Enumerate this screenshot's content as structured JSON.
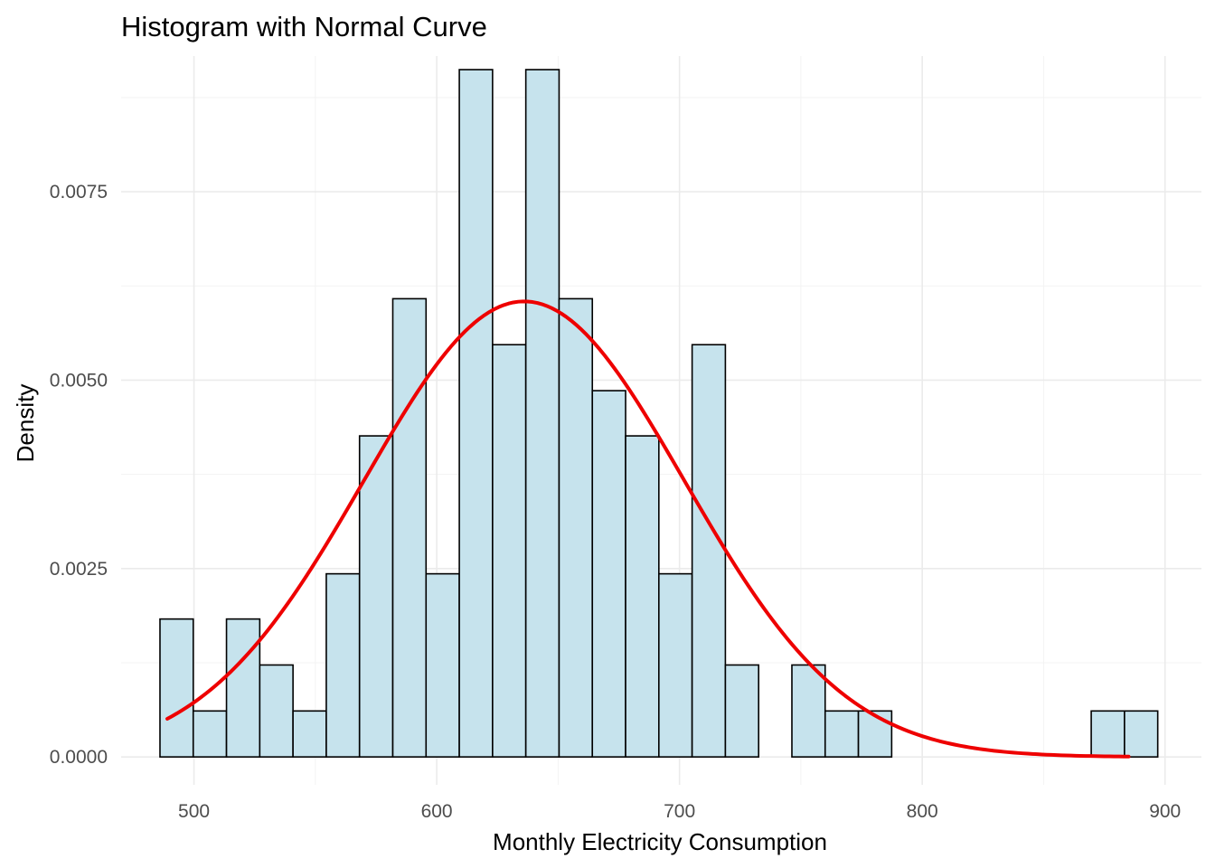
{
  "chart_data": {
    "type": "bar",
    "title": "Histogram with Normal Curve",
    "xlabel": "Monthly Electricity Consumption",
    "ylabel": "Density",
    "xlim": [
      470,
      915
    ],
    "ylim": [
      -0.00037,
      0.0093
    ],
    "x_ticks": [
      500,
      600,
      700,
      800,
      900
    ],
    "x_tick_labels": [
      "500",
      "600",
      "700",
      "800",
      "900"
    ],
    "y_ticks": [
      0,
      0.0025,
      0.005,
      0.0075
    ],
    "y_tick_labels": [
      "0.0000",
      "0.0025",
      "0.0050",
      "0.0075"
    ],
    "grid": true,
    "legend": "none",
    "colors": {
      "bar_fill": "#c6e3ed",
      "bar_outline": "#000000",
      "curve": "#ee0000",
      "grid": "#ebebeb"
    },
    "histogram": {
      "bin_width": 13.7,
      "bins": [
        {
          "start": 486.0,
          "end": 499.7,
          "density": 0.00183
        },
        {
          "start": 499.7,
          "end": 513.4,
          "density": 0.00061
        },
        {
          "start": 513.4,
          "end": 527.1,
          "density": 0.00183
        },
        {
          "start": 527.1,
          "end": 540.8,
          "density": 0.00122
        },
        {
          "start": 540.8,
          "end": 554.5,
          "density": 0.00061
        },
        {
          "start": 554.5,
          "end": 568.2,
          "density": 0.00243
        },
        {
          "start": 568.2,
          "end": 581.9,
          "density": 0.00426
        },
        {
          "start": 581.9,
          "end": 595.6,
          "density": 0.00608
        },
        {
          "start": 595.6,
          "end": 609.3,
          "density": 0.00243
        },
        {
          "start": 609.3,
          "end": 623.0,
          "density": 0.00912
        },
        {
          "start": 623.0,
          "end": 636.7,
          "density": 0.00547
        },
        {
          "start": 636.7,
          "end": 650.4,
          "density": 0.00912
        },
        {
          "start": 650.4,
          "end": 664.1,
          "density": 0.00608
        },
        {
          "start": 664.1,
          "end": 677.8,
          "density": 0.00486
        },
        {
          "start": 677.8,
          "end": 691.5,
          "density": 0.00426
        },
        {
          "start": 691.5,
          "end": 705.2,
          "density": 0.00243
        },
        {
          "start": 705.2,
          "end": 718.9,
          "density": 0.00547
        },
        {
          "start": 718.9,
          "end": 732.6,
          "density": 0.00122
        },
        {
          "start": 732.6,
          "end": 746.3,
          "density": 0.0
        },
        {
          "start": 746.3,
          "end": 760.0,
          "density": 0.00122
        },
        {
          "start": 760.0,
          "end": 773.7,
          "density": 0.00061
        },
        {
          "start": 773.7,
          "end": 787.4,
          "density": 0.00061
        },
        {
          "start": 787.4,
          "end": 801.1,
          "density": 0.0
        },
        {
          "start": 801.1,
          "end": 814.8,
          "density": 0.0
        },
        {
          "start": 814.8,
          "end": 828.5,
          "density": 0.0
        },
        {
          "start": 828.5,
          "end": 842.2,
          "density": 0.0
        },
        {
          "start": 842.2,
          "end": 855.9,
          "density": 0.0
        },
        {
          "start": 855.9,
          "end": 869.6,
          "density": 0.0
        },
        {
          "start": 869.6,
          "end": 883.3,
          "density": 0.00061
        },
        {
          "start": 883.3,
          "end": 897.0,
          "density": 0.00061
        }
      ]
    },
    "normal_curve": {
      "mean": 636,
      "sd": 66,
      "x_range": [
        489,
        885
      ]
    }
  }
}
